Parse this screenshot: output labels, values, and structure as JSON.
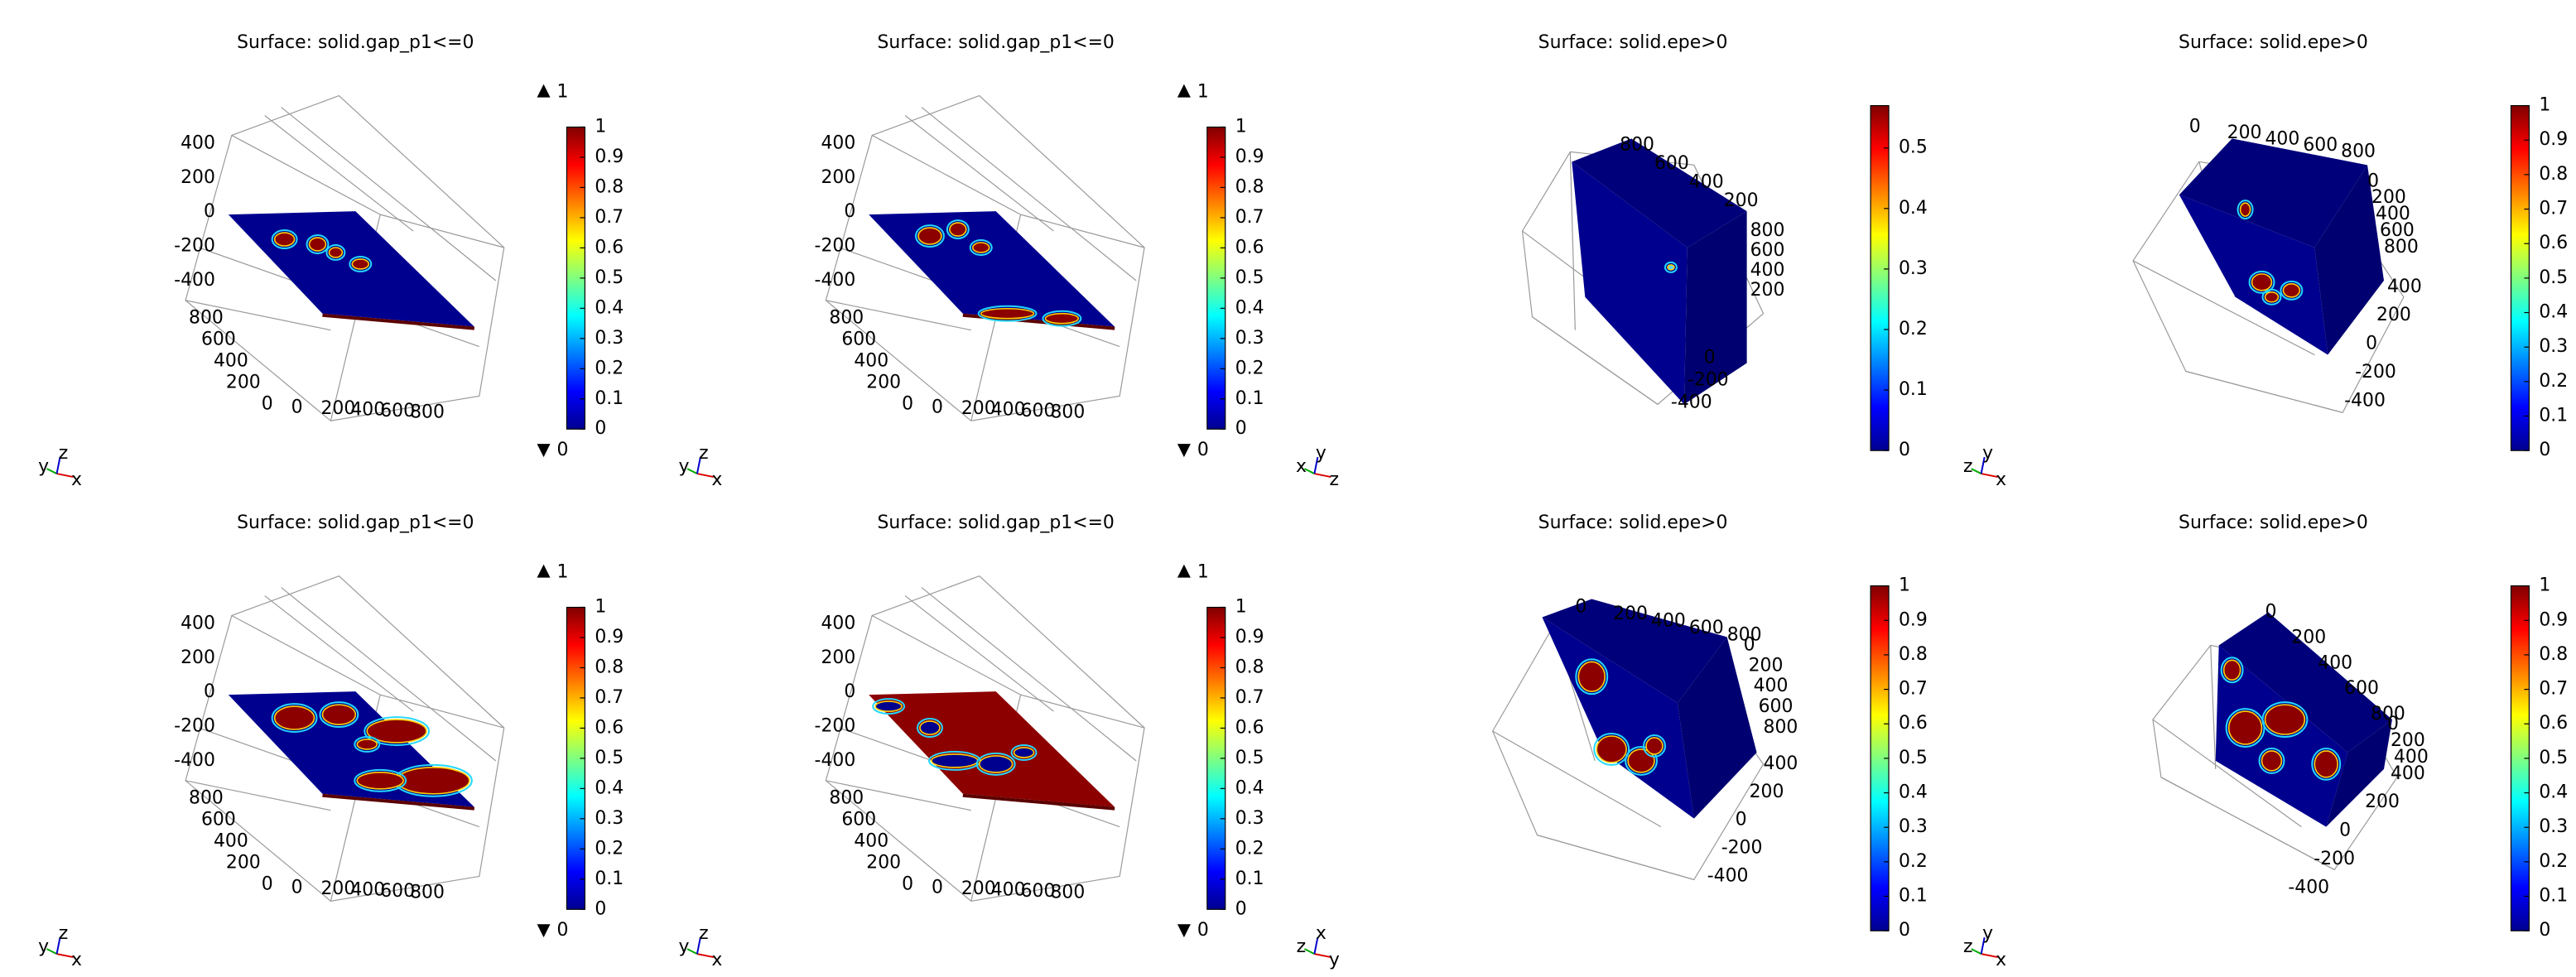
{
  "panels": [
    {
      "title": "Surface: solid.gap_p1<=0",
      "range": {
        "max": 1,
        "min": 0
      },
      "colorbar": {
        "lim": [
          0,
          1
        ],
        "ticks": [
          0,
          0.1,
          0.2,
          0.3,
          0.4,
          0.5,
          0.6,
          0.7,
          0.8,
          0.9,
          1
        ]
      },
      "axes": [
        [
          400,
          200,
          0,
          -200,
          -400
        ],
        [
          800,
          600,
          400,
          200,
          0
        ],
        [
          0,
          200,
          400,
          600,
          800
        ]
      ],
      "triad": [
        "y",
        "z",
        "x"
      ]
    },
    {
      "title": "Surface: solid.gap_p1<=0",
      "range": {
        "max": 1,
        "min": 0
      },
      "colorbar": {
        "lim": [
          0,
          1
        ],
        "ticks": [
          0,
          0.1,
          0.2,
          0.3,
          0.4,
          0.5,
          0.6,
          0.7,
          0.8,
          0.9,
          1
        ]
      },
      "axes": [
        [
          400,
          200,
          0,
          -200,
          -400
        ],
        [
          800,
          600,
          400,
          200,
          0
        ],
        [
          0,
          200,
          400,
          600,
          800
        ]
      ],
      "triad": [
        "y",
        "z",
        "x"
      ]
    },
    {
      "title": "Surface: solid.epe>0",
      "colorbar": {
        "lim": [
          0,
          0.57
        ],
        "ticks": [
          0,
          0.1,
          0.2,
          0.3,
          0.4,
          0.5
        ]
      },
      "axes": [
        [
          800,
          600,
          400,
          200
        ],
        [
          800,
          600,
          400,
          200
        ],
        [
          0,
          -200,
          -400
        ]
      ],
      "triad": [
        "x",
        "y",
        "z"
      ]
    },
    {
      "title": "Surface: solid.epe>0",
      "colorbar": {
        "lim": [
          0,
          1
        ],
        "ticks": [
          0,
          0.1,
          0.2,
          0.3,
          0.4,
          0.5,
          0.6,
          0.7,
          0.8,
          0.9,
          1
        ]
      },
      "axes": [
        [
          0,
          200,
          400,
          600,
          800
        ],
        [
          0,
          200,
          400,
          600,
          800
        ],
        [
          400,
          200,
          0,
          -200,
          -400
        ]
      ],
      "triad": [
        "z",
        "y",
        "x"
      ]
    },
    {
      "title": "Surface: solid.gap_p1<=0",
      "range": {
        "max": 1,
        "min": 0
      },
      "colorbar": {
        "lim": [
          0,
          1
        ],
        "ticks": [
          0,
          0.1,
          0.2,
          0.3,
          0.4,
          0.5,
          0.6,
          0.7,
          0.8,
          0.9,
          1
        ]
      },
      "axes": [
        [
          400,
          200,
          0,
          -200,
          -400
        ],
        [
          800,
          600,
          400,
          200,
          0
        ],
        [
          0,
          200,
          400,
          600,
          800
        ]
      ],
      "triad": [
        "y",
        "z",
        "x"
      ]
    },
    {
      "title": "Surface: solid.gap_p1<=0",
      "range": {
        "max": 1,
        "min": 0
      },
      "colorbar": {
        "lim": [
          0,
          1
        ],
        "ticks": [
          0,
          0.1,
          0.2,
          0.3,
          0.4,
          0.5,
          0.6,
          0.7,
          0.8,
          0.9,
          1
        ]
      },
      "axes": [
        [
          400,
          200,
          0,
          -200,
          -400
        ],
        [
          800,
          600,
          400,
          200,
          0
        ],
        [
          0,
          200,
          400,
          600,
          800
        ]
      ],
      "triad": [
        "y",
        "z",
        "x"
      ]
    },
    {
      "title": "Surface: solid.epe>0",
      "colorbar": {
        "lim": [
          0,
          1
        ],
        "ticks": [
          0,
          0.1,
          0.2,
          0.3,
          0.4,
          0.5,
          0.6,
          0.7,
          0.8,
          0.9,
          1
        ]
      },
      "axes": [
        [
          0,
          200,
          400,
          600,
          800
        ],
        [
          0,
          200,
          400,
          600,
          800
        ],
        [
          400,
          200,
          0,
          -200,
          -400
        ]
      ],
      "triad": [
        "z",
        "x",
        "y"
      ]
    },
    {
      "title": "Surface: solid.epe>0",
      "colorbar": {
        "lim": [
          0,
          1
        ],
        "ticks": [
          0,
          0.1,
          0.2,
          0.3,
          0.4,
          0.5,
          0.6,
          0.7,
          0.8,
          0.9,
          1
        ]
      },
      "axes": [
        [
          0,
          200,
          400,
          600,
          800
        ],
        [
          0,
          200,
          400
        ],
        [
          400,
          200,
          0,
          -200,
          -400
        ]
      ],
      "triad": [
        "z",
        "y",
        "x"
      ]
    }
  ]
}
